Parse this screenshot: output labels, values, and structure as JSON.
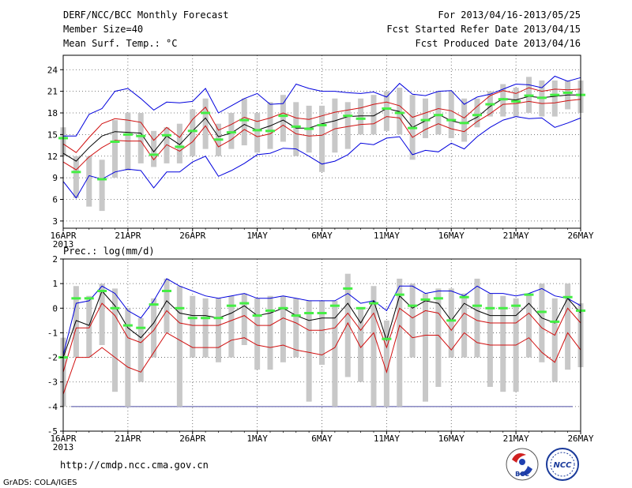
{
  "header": {
    "title": "DERF/NCC/BCC Monthly Forecast",
    "member_size": "Member Size=40",
    "variable": "Mean Surf. Temp.: °C",
    "period": "For 2013/04/16-2013/05/25",
    "fcst_started": "Fcst Started Refer Date 2013/04/15",
    "fcst_produced": "Fcst Produced Date 2013/04/16"
  },
  "footer": {
    "url": "http://cmdp.ncc.cma.gov.cn",
    "credit": "GrADS: COLA/IGES",
    "logo_bcc": "BCC",
    "logo_ncc": "NCC"
  },
  "colors": {
    "box": "#c8c8c8",
    "obs": "#44ee44",
    "mean": "#000000",
    "spread": "#d01010",
    "envelope": "#0000dd",
    "grid": "#555555"
  },
  "chart_data": [
    {
      "type": "box-line",
      "title": "Mean Surf. Temp.: °C",
      "xlabel": "",
      "ylabel": "°C",
      "ylim": [
        2,
        26
      ],
      "yticks": [
        3,
        6,
        9,
        12,
        15,
        18,
        21,
        24
      ],
      "xlim": [
        0,
        40
      ],
      "xticks": [
        {
          "day": 0,
          "label": "16APR",
          "sub": "2013"
        },
        {
          "day": 5,
          "label": "21APR"
        },
        {
          "day": 10,
          "label": "26APR"
        },
        {
          "day": 15,
          "label": "1MAY"
        },
        {
          "day": 20,
          "label": "6MAY"
        },
        {
          "day": 25,
          "label": "11MAY"
        },
        {
          "day": 30,
          "label": "16MAY"
        },
        {
          "day": 35,
          "label": "21MAY"
        },
        {
          "day": 40,
          "label": "26MAY"
        }
      ],
      "series": [
        {
          "name": "ensemble maximum",
          "values": [
            8.5,
            6.2,
            9.3,
            8.8,
            9.8,
            10.2,
            10.0,
            7.6,
            9.8,
            9.8,
            11.2,
            12.0,
            9.2,
            10.0,
            11.0,
            12.2,
            12.4,
            13.1,
            13.0,
            12.0,
            10.9,
            11.3,
            12.2,
            13.8,
            13.6,
            14.5,
            14.7,
            12.2,
            12.8,
            12.6,
            13.8,
            13.0,
            14.7,
            16.0,
            17.0,
            17.5,
            17.2,
            17.3,
            16.0,
            16.6,
            17.3
          ]
        },
        {
          "name": "ensemble maximum upper",
          "values": [
            14.8,
            14.8,
            17.8,
            18.6,
            21.0,
            21.4,
            20.0,
            18.4,
            19.5,
            19.4,
            19.6,
            21.4,
            18.0,
            19.0,
            20.0,
            20.7,
            19.2,
            19.3,
            22.0,
            21.4,
            21.0,
            21.0,
            20.8,
            20.7,
            20.9,
            20.2,
            22.1,
            20.6,
            20.4,
            21.0,
            21.1,
            19.2,
            20.2,
            20.6,
            21.3,
            22.0,
            21.9,
            21.5,
            23.1,
            22.4,
            22.9
          ]
        },
        {
          "name": "mean - spread",
          "values": [
            11.2,
            10.1,
            11.9,
            13.2,
            14.2,
            14.1,
            14.1,
            11.5,
            13.6,
            12.7,
            14.0,
            16.2,
            13.3,
            14.3,
            15.7,
            14.7,
            15.1,
            16.3,
            15.1,
            14.8,
            14.9,
            15.8,
            16.1,
            16.4,
            16.5,
            17.5,
            17.3,
            14.6,
            15.7,
            16.5,
            15.8,
            15.4,
            16.8,
            17.9,
            19.2,
            19.3,
            19.6,
            19.3,
            19.4,
            19.7,
            19.9
          ]
        },
        {
          "name": "ensemble mean",
          "values": [
            12.4,
            11.3,
            13.2,
            14.8,
            15.4,
            15.3,
            15.2,
            12.6,
            14.8,
            13.6,
            15.5,
            17.3,
            14.7,
            15.2,
            16.4,
            15.6,
            16.2,
            17.0,
            15.9,
            15.9,
            16.5,
            16.9,
            17.5,
            17.6,
            17.6,
            18.6,
            18.2,
            16.0,
            16.9,
            17.8,
            16.9,
            16.5,
            17.4,
            18.9,
            20.0,
            19.8,
            20.3,
            20.1,
            20.3,
            20.5,
            20.5
          ]
        },
        {
          "name": "mean + spread",
          "values": [
            13.7,
            12.5,
            14.6,
            16.5,
            17.2,
            17.0,
            16.7,
            14.2,
            16.0,
            14.6,
            17.1,
            18.8,
            15.6,
            16.4,
            17.4,
            16.8,
            17.3,
            18.0,
            17.3,
            17.1,
            17.6,
            18.1,
            18.4,
            18.7,
            19.2,
            19.5,
            19.0,
            17.4,
            18.0,
            18.6,
            18.3,
            17.3,
            18.9,
            20.4,
            21.1,
            20.7,
            21.5,
            21.0,
            21.3,
            21.2,
            21.3
          ]
        }
      ],
      "boxes": [
        {
          "lo": 12.0,
          "hi": 16.0
        },
        {
          "lo": 6.2,
          "hi": 12.0
        },
        {
          "lo": 5.0,
          "hi": 12.0
        },
        {
          "lo": 4.4,
          "hi": 11.5
        },
        {
          "lo": 9.0,
          "hi": 17.0
        },
        {
          "lo": 10.0,
          "hi": 18.0
        },
        {
          "lo": 11.0,
          "hi": 18.0
        },
        {
          "lo": 10.5,
          "hi": 15.5
        },
        {
          "lo": 11.0,
          "hi": 16.0
        },
        {
          "lo": 11.0,
          "hi": 16.5
        },
        {
          "lo": 12.0,
          "hi": 18.5
        },
        {
          "lo": 13.0,
          "hi": 20.0
        },
        {
          "lo": 12.0,
          "hi": 16.5
        },
        {
          "lo": 13.0,
          "hi": 18.0
        },
        {
          "lo": 13.5,
          "hi": 20.0
        },
        {
          "lo": 12.5,
          "hi": 18.0
        },
        {
          "lo": 13.0,
          "hi": 19.5
        },
        {
          "lo": 14.0,
          "hi": 20.5
        },
        {
          "lo": 12.0,
          "hi": 19.5
        },
        {
          "lo": 12.5,
          "hi": 19.0
        },
        {
          "lo": 9.8,
          "hi": 19.0
        },
        {
          "lo": 12.5,
          "hi": 20.0
        },
        {
          "lo": 13.0,
          "hi": 19.5
        },
        {
          "lo": 15.0,
          "hi": 20.0
        },
        {
          "lo": 15.0,
          "hi": 20.5
        },
        {
          "lo": 15.5,
          "hi": 21.0
        },
        {
          "lo": 15.0,
          "hi": 21.5
        },
        {
          "lo": 11.5,
          "hi": 20.5
        },
        {
          "lo": 14.5,
          "hi": 20.0
        },
        {
          "lo": 15.0,
          "hi": 21.0
        },
        {
          "lo": 14.5,
          "hi": 21.0
        },
        {
          "lo": 14.0,
          "hi": 20.0
        },
        {
          "lo": 16.0,
          "hi": 20.0
        },
        {
          "lo": 17.5,
          "hi": 21.0
        },
        {
          "lo": 17.5,
          "hi": 22.0
        },
        {
          "lo": 17.5,
          "hi": 21.5
        },
        {
          "lo": 18.0,
          "hi": 23.0
        },
        {
          "lo": 17.5,
          "hi": 22.5
        },
        {
          "lo": 17.5,
          "hi": 22.5
        },
        {
          "lo": 18.5,
          "hi": 22.5
        },
        {
          "lo": 18.0,
          "hi": 22.5
        }
      ],
      "observations": [
        14.5,
        9.8,
        null,
        8.8,
        14.0,
        15.0,
        14.8,
        12.2,
        14.9,
        13.3,
        15.5,
        18.0,
        14.3,
        15.3,
        17.0,
        15.6,
        15.5,
        17.6,
        16.1,
        15.8,
        16.3,
        null,
        17.6,
        17.2,
        null,
        18.6,
        18.0,
        15.9,
        17.0,
        17.7,
        17.0,
        16.6,
        17.7,
        19.2,
        19.9,
        19.6,
        20.4,
        20.1,
        20.5,
        20.8,
        20.5
      ]
    },
    {
      "type": "box-line",
      "title": "Prec.: log(mm/d)",
      "xlabel": "",
      "ylabel": "log(mm/d)",
      "ylim": [
        -5,
        2
      ],
      "yticks": [
        -5,
        -4,
        -3,
        -2,
        -1,
        0,
        1,
        2
      ],
      "xlim": [
        0,
        40
      ],
      "xticks": [
        {
          "day": 0,
          "label": "16APR",
          "sub": "2013"
        },
        {
          "day": 5,
          "label": "21APR"
        },
        {
          "day": 10,
          "label": "26APR"
        },
        {
          "day": 15,
          "label": "1MAY"
        },
        {
          "day": 20,
          "label": "6MAY"
        },
        {
          "day": 25,
          "label": "11MAY"
        },
        {
          "day": 30,
          "label": "16MAY"
        },
        {
          "day": 35,
          "label": "21MAY"
        },
        {
          "day": 40,
          "label": "26MAY"
        }
      ],
      "baseline": -4,
      "series": [
        {
          "name": "ensemble maximum",
          "values": [
            -1.9,
            0.2,
            0.3,
            0.9,
            0.6,
            -0.1,
            -0.4,
            0.3,
            1.2,
            0.9,
            0.7,
            0.5,
            0.4,
            0.5,
            0.6,
            0.4,
            0.4,
            0.5,
            0.4,
            0.3,
            0.3,
            0.3,
            0.6,
            0.2,
            0.3,
            -0.1,
            0.9,
            0.9,
            0.6,
            0.7,
            0.7,
            0.5,
            0.9,
            0.6,
            0.6,
            0.5,
            0.6,
            0.8,
            0.5,
            0.4,
            0.1
          ]
        },
        {
          "name": "ensemble mean",
          "values": [
            -2.0,
            -0.5,
            -0.7,
            0.7,
            0.1,
            -0.8,
            -1.2,
            -0.6,
            0.3,
            -0.2,
            -0.3,
            -0.3,
            -0.4,
            -0.2,
            0.1,
            -0.3,
            -0.2,
            0.0,
            -0.3,
            -0.5,
            -0.4,
            -0.4,
            0.2,
            -0.6,
            0.3,
            -1.3,
            0.5,
            0.0,
            0.3,
            0.2,
            -0.5,
            0.2,
            -0.1,
            -0.3,
            -0.3,
            -0.3,
            0.2,
            -0.4,
            -0.6,
            0.4,
            -0.2
          ]
        },
        {
          "name": "mean - spread (upper)",
          "values": [
            -2.6,
            -0.8,
            -0.8,
            0.2,
            -0.3,
            -1.2,
            -1.4,
            -0.9,
            -0.1,
            -0.6,
            -0.7,
            -0.7,
            -0.7,
            -0.5,
            -0.3,
            -0.7,
            -0.7,
            -0.4,
            -0.6,
            -0.9,
            -0.9,
            -0.8,
            -0.2,
            -0.9,
            -0.2,
            -1.6,
            0.0,
            -0.4,
            -0.1,
            -0.2,
            -0.9,
            -0.2,
            -0.5,
            -0.6,
            -0.6,
            -0.6,
            -0.2,
            -0.8,
            -1.1,
            0.0,
            -0.6
          ]
        },
        {
          "name": "mean - spread (lower)",
          "values": [
            -3.5,
            -2.0,
            -2.0,
            -1.6,
            -2.0,
            -2.4,
            -2.6,
            -1.8,
            -1.0,
            -1.3,
            -1.6,
            -1.6,
            -1.6,
            -1.3,
            -1.2,
            -1.5,
            -1.6,
            -1.5,
            -1.7,
            -1.8,
            -1.9,
            -1.6,
            -0.6,
            -1.6,
            -1.0,
            -2.6,
            -0.7,
            -1.2,
            -1.1,
            -1.1,
            -1.7,
            -1.0,
            -1.4,
            -1.5,
            -1.5,
            -1.5,
            -1.2,
            -1.8,
            -2.2,
            -1.0,
            -1.7
          ]
        }
      ],
      "boxes": [
        {
          "lo": -4.0,
          "hi": -1.2
        },
        {
          "lo": -2.0,
          "hi": 0.9
        },
        {
          "lo": -2.0,
          "hi": 0.5
        },
        {
          "lo": -1.5,
          "hi": 1.0
        },
        {
          "lo": -3.4,
          "hi": 0.8
        },
        {
          "lo": -4.0,
          "hi": 0.0
        },
        {
          "lo": -3.0,
          "hi": -0.4
        },
        {
          "lo": -2.0,
          "hi": 0.4
        },
        {
          "lo": -1.0,
          "hi": 1.2
        },
        {
          "lo": -4.0,
          "hi": 0.9
        },
        {
          "lo": -2.0,
          "hi": 0.5
        },
        {
          "lo": -2.0,
          "hi": 0.4
        },
        {
          "lo": -2.2,
          "hi": 0.4
        },
        {
          "lo": -2.0,
          "hi": 0.5
        },
        {
          "lo": -1.5,
          "hi": 0.6
        },
        {
          "lo": -2.5,
          "hi": 0.4
        },
        {
          "lo": -2.5,
          "hi": 0.5
        },
        {
          "lo": -2.2,
          "hi": 0.5
        },
        {
          "lo": -2.0,
          "hi": 0.4
        },
        {
          "lo": -3.8,
          "hi": 0.3
        },
        {
          "lo": -2.3,
          "hi": 0.3
        },
        {
          "lo": -4.0,
          "hi": 0.3
        },
        {
          "lo": -2.8,
          "hi": 1.4
        },
        {
          "lo": -3.0,
          "hi": 0.0
        },
        {
          "lo": -4.0,
          "hi": 0.9
        },
        {
          "lo": -4.0,
          "hi": -0.5
        },
        {
          "lo": -4.0,
          "hi": 1.2
        },
        {
          "lo": -2.0,
          "hi": 1.0
        },
        {
          "lo": -3.8,
          "hi": 0.6
        },
        {
          "lo": -3.2,
          "hi": 0.8
        },
        {
          "lo": -2.0,
          "hi": 0.8
        },
        {
          "lo": -2.0,
          "hi": 0.6
        },
        {
          "lo": -2.0,
          "hi": 1.2
        },
        {
          "lo": -3.2,
          "hi": 0.6
        },
        {
          "lo": -3.4,
          "hi": 0.5
        },
        {
          "lo": -3.4,
          "hi": 0.4
        },
        {
          "lo": -2.0,
          "hi": 0.6
        },
        {
          "lo": -2.2,
          "hi": 1.0
        },
        {
          "lo": -3.0,
          "hi": 0.4
        },
        {
          "lo": -2.5,
          "hi": 1.0
        },
        {
          "lo": -2.4,
          "hi": 0.2
        }
      ],
      "observations": [
        -2.0,
        0.4,
        0.4,
        0.7,
        0.0,
        -0.7,
        -0.8,
        0.15,
        0.7,
        0.0,
        -0.4,
        -0.4,
        -0.4,
        0.1,
        0.2,
        -0.3,
        -0.1,
        0.0,
        -0.3,
        -0.2,
        -0.2,
        0.1,
        0.8,
        0.0,
        0.2,
        -1.25,
        0.55,
        0.1,
        0.35,
        0.4,
        -0.5,
        0.45,
        0.1,
        0.0,
        0.0,
        0.1,
        0.55,
        -0.15,
        -0.55,
        0.45,
        -0.1
      ]
    }
  ]
}
